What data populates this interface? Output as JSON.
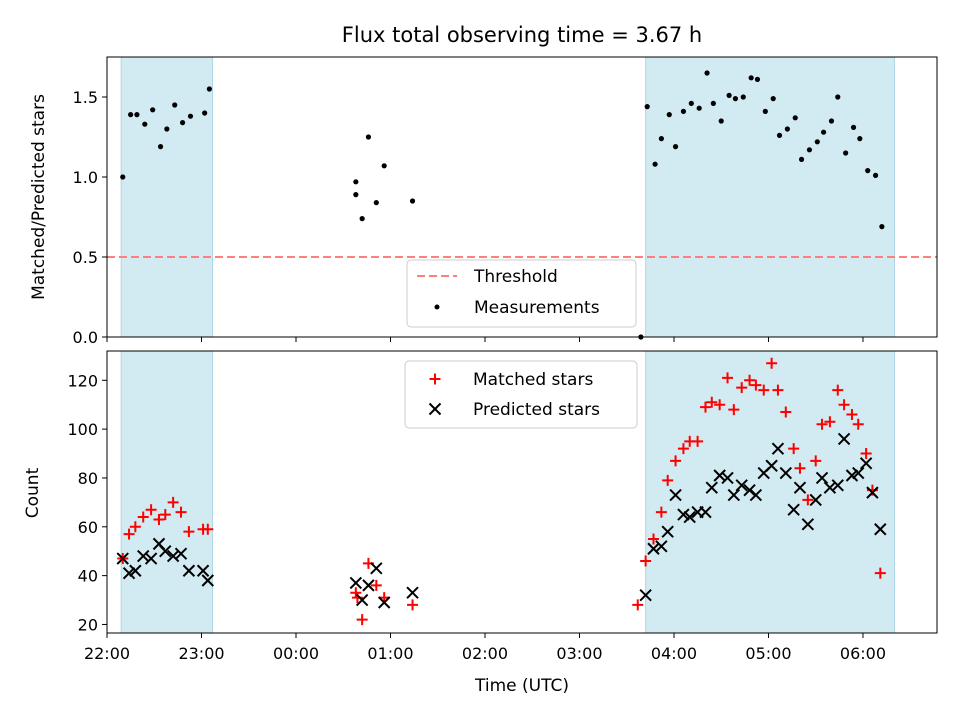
{
  "chart_data": {
    "type": "scatter",
    "title": "Flux total observing time = 3.67 h",
    "xlabel": "Time (UTC)",
    "x_ticks": [
      "22:00",
      "23:00",
      "00:00",
      "01:00",
      "02:00",
      "03:00",
      "04:00",
      "05:00",
      "06:00"
    ],
    "xlim": [
      "22:00",
      "06:47"
    ],
    "colors": {
      "shade": "#add8e6",
      "threshold": "#ff7f7f",
      "matched": "#ff0000",
      "predicted": "#000000",
      "measurements": "#000000"
    },
    "shaded_intervals": [
      [
        "22:09",
        "23:07"
      ],
      [
        "03:42",
        "06:20"
      ]
    ],
    "panels": [
      {
        "name": "ratio",
        "ylabel": "Matched/Predicted stars",
        "ylim": [
          0,
          1.75
        ],
        "y_ticks": [
          "0.0",
          "0.5",
          "1.0",
          "1.5"
        ],
        "legend": {
          "placement": "lower center",
          "entries": [
            "Threshold",
            "Measurements"
          ]
        },
        "threshold": {
          "name": "Threshold",
          "value": 0.5
        },
        "series": [
          {
            "name": "Measurements",
            "marker": "dot",
            "points": [
              [
                "22:10",
                1.0
              ],
              [
                "22:15",
                1.39
              ],
              [
                "22:19",
                1.39
              ],
              [
                "22:24",
                1.33
              ],
              [
                "22:29",
                1.42
              ],
              [
                "22:34",
                1.19
              ],
              [
                "22:38",
                1.3
              ],
              [
                "22:43",
                1.45
              ],
              [
                "22:48",
                1.34
              ],
              [
                "22:53",
                1.38
              ],
              [
                "23:02",
                1.4
              ],
              [
                "23:05",
                1.55
              ],
              [
                "00:38",
                0.97
              ],
              [
                "00:38",
                0.89
              ],
              [
                "00:42",
                0.74
              ],
              [
                "00:46",
                1.25
              ],
              [
                "00:51",
                0.84
              ],
              [
                "00:56",
                1.07
              ],
              [
                "01:14",
                0.85
              ],
              [
                "03:39",
                0.0
              ],
              [
                "03:43",
                1.44
              ],
              [
                "03:48",
                1.08
              ],
              [
                "03:52",
                1.24
              ],
              [
                "03:57",
                1.39
              ],
              [
                "04:01",
                1.19
              ],
              [
                "04:06",
                1.41
              ],
              [
                "04:11",
                1.46
              ],
              [
                "04:16",
                1.43
              ],
              [
                "04:21",
                1.65
              ],
              [
                "04:25",
                1.46
              ],
              [
                "04:30",
                1.35
              ],
              [
                "04:35",
                1.51
              ],
              [
                "04:39",
                1.49
              ],
              [
                "04:44",
                1.5
              ],
              [
                "04:49",
                1.62
              ],
              [
                "04:53",
                1.61
              ],
              [
                "04:58",
                1.41
              ],
              [
                "05:03",
                1.49
              ],
              [
                "05:07",
                1.26
              ],
              [
                "05:12",
                1.3
              ],
              [
                "05:17",
                1.37
              ],
              [
                "05:21",
                1.11
              ],
              [
                "05:26",
                1.17
              ],
              [
                "05:31",
                1.22
              ],
              [
                "05:35",
                1.28
              ],
              [
                "05:40",
                1.35
              ],
              [
                "05:44",
                1.5
              ],
              [
                "05:49",
                1.15
              ],
              [
                "05:54",
                1.31
              ],
              [
                "05:58",
                1.24
              ],
              [
                "06:03",
                1.04
              ],
              [
                "06:08",
                1.01
              ],
              [
                "06:12",
                0.69
              ]
            ]
          }
        ]
      },
      {
        "name": "counts",
        "ylabel": "Count",
        "ylim": [
          16.5,
          132
        ],
        "y_ticks": [
          "20",
          "40",
          "60",
          "80",
          "100",
          "120"
        ],
        "legend": {
          "placement": "upper center",
          "entries": [
            "Matched stars",
            "Predicted stars"
          ]
        },
        "series": [
          {
            "name": "Matched stars",
            "marker": "plus",
            "points": [
              [
                "22:10",
                47
              ],
              [
                "22:14",
                57
              ],
              [
                "22:18",
                60
              ],
              [
                "22:23",
                64
              ],
              [
                "22:28",
                67
              ],
              [
                "22:33",
                63
              ],
              [
                "22:37",
                65
              ],
              [
                "22:42",
                70
              ],
              [
                "22:47",
                66
              ],
              [
                "22:52",
                58
              ],
              [
                "23:01",
                59
              ],
              [
                "23:04",
                59
              ],
              [
                "00:38",
                33
              ],
              [
                "00:39",
                31
              ],
              [
                "00:42",
                22
              ],
              [
                "00:46",
                45
              ],
              [
                "00:51",
                36
              ],
              [
                "00:56",
                31
              ],
              [
                "01:14",
                28
              ],
              [
                "03:37",
                28
              ],
              [
                "03:42",
                46
              ],
              [
                "03:47",
                55
              ],
              [
                "03:52",
                66
              ],
              [
                "03:56",
                79
              ],
              [
                "04:01",
                87
              ],
              [
                "04:06",
                92
              ],
              [
                "04:10",
                95
              ],
              [
                "04:15",
                95
              ],
              [
                "04:20",
                109
              ],
              [
                "04:24",
                111
              ],
              [
                "04:29",
                110
              ],
              [
                "04:34",
                121
              ],
              [
                "04:38",
                108
              ],
              [
                "04:43",
                117
              ],
              [
                "04:48",
                120
              ],
              [
                "04:52",
                118
              ],
              [
                "04:57",
                116
              ],
              [
                "05:02",
                127
              ],
              [
                "05:06",
                116
              ],
              [
                "05:11",
                107
              ],
              [
                "05:16",
                92
              ],
              [
                "05:20",
                84
              ],
              [
                "05:25",
                71
              ],
              [
                "05:30",
                87
              ],
              [
                "05:34",
                102
              ],
              [
                "05:39",
                103
              ],
              [
                "05:44",
                116
              ],
              [
                "05:48",
                110
              ],
              [
                "05:53",
                106
              ],
              [
                "05:57",
                102
              ],
              [
                "06:02",
                90
              ],
              [
                "06:06",
                75
              ],
              [
                "06:11",
                41
              ]
            ]
          },
          {
            "name": "Predicted stars",
            "marker": "x",
            "points": [
              [
                "22:10",
                47
              ],
              [
                "22:14",
                41
              ],
              [
                "22:18",
                42
              ],
              [
                "22:23",
                48
              ],
              [
                "22:28",
                47
              ],
              [
                "22:33",
                53
              ],
              [
                "22:37",
                50
              ],
              [
                "22:42",
                48
              ],
              [
                "22:47",
                49
              ],
              [
                "22:52",
                42
              ],
              [
                "23:01",
                42
              ],
              [
                "23:04",
                38
              ],
              [
                "00:38",
                37
              ],
              [
                "00:42",
                30
              ],
              [
                "00:46",
                36
              ],
              [
                "00:51",
                43
              ],
              [
                "00:56",
                29
              ],
              [
                "01:14",
                33
              ],
              [
                "03:42",
                32
              ],
              [
                "03:47",
                51
              ],
              [
                "03:52",
                52
              ],
              [
                "03:56",
                58
              ],
              [
                "04:01",
                73
              ],
              [
                "04:06",
                65
              ],
              [
                "04:10",
                64
              ],
              [
                "04:15",
                66
              ],
              [
                "04:20",
                66
              ],
              [
                "04:24",
                76
              ],
              [
                "04:29",
                81
              ],
              [
                "04:34",
                80
              ],
              [
                "04:38",
                73
              ],
              [
                "04:43",
                77
              ],
              [
                "04:48",
                75
              ],
              [
                "04:52",
                73
              ],
              [
                "04:57",
                82
              ],
              [
                "05:02",
                85
              ],
              [
                "05:06",
                92
              ],
              [
                "05:11",
                82
              ],
              [
                "05:16",
                67
              ],
              [
                "05:20",
                76
              ],
              [
                "05:25",
                61
              ],
              [
                "05:30",
                71
              ],
              [
                "05:34",
                80
              ],
              [
                "05:39",
                76
              ],
              [
                "05:44",
                77
              ],
              [
                "05:48",
                96
              ],
              [
                "05:53",
                81
              ],
              [
                "05:57",
                82
              ],
              [
                "06:02",
                86
              ],
              [
                "06:06",
                74
              ],
              [
                "06:11",
                59
              ]
            ]
          }
        ]
      }
    ]
  }
}
